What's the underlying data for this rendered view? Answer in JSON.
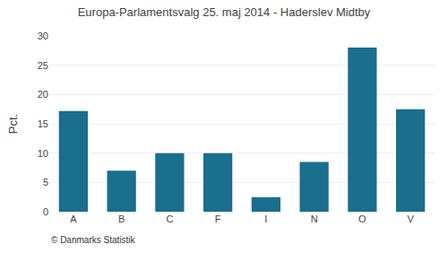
{
  "chart_data": {
    "type": "bar",
    "title": "Europa-Parlamentsvalg 25. maj 2014 - Haderslev Midtby",
    "ylabel": "Pct.",
    "annotations": [
      "© Danmarks Statistik"
    ],
    "categories": [
      "A",
      "B",
      "C",
      "F",
      "I",
      "N",
      "O",
      "V"
    ],
    "values": [
      17.2,
      7.0,
      10.0,
      10.0,
      2.5,
      8.5,
      28.0,
      17.5
    ],
    "color": "#1a6e8e",
    "ylim": [
      0,
      30
    ],
    "yticks": [
      0,
      5,
      10,
      15,
      20,
      25,
      30
    ],
    "grid": true
  }
}
